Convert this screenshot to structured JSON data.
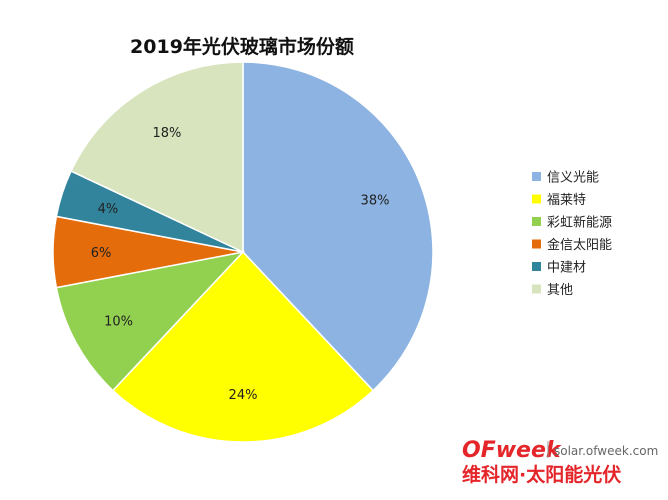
{
  "chart_data": {
    "type": "pie",
    "title": "2019年光伏玻璃市场份额",
    "slices": [
      {
        "label": "信义光能",
        "value": 38,
        "color": "#8db3e2"
      },
      {
        "label": "福莱特",
        "value": 24,
        "color": "#ffff00"
      },
      {
        "label": "彩虹新能源",
        "value": 10,
        "color": "#92d050"
      },
      {
        "label": "金信太阳能",
        "value": 6,
        "color": "#e46c0a"
      },
      {
        "label": "中建材",
        "value": 4,
        "color": "#31849b"
      },
      {
        "label": "其他",
        "value": 18,
        "color": "#d7e4bd"
      }
    ],
    "value_suffix": "%",
    "legend_position": "right",
    "start_angle": "12 o'clock",
    "direction": "clockwise"
  },
  "watermark": {
    "brand_o": "O",
    "brand_rest": "Fweek",
    "site": "solar.ofweek.com",
    "cn_name": "维科网·太阳能光伏",
    "brand_color": "#e4252a"
  }
}
